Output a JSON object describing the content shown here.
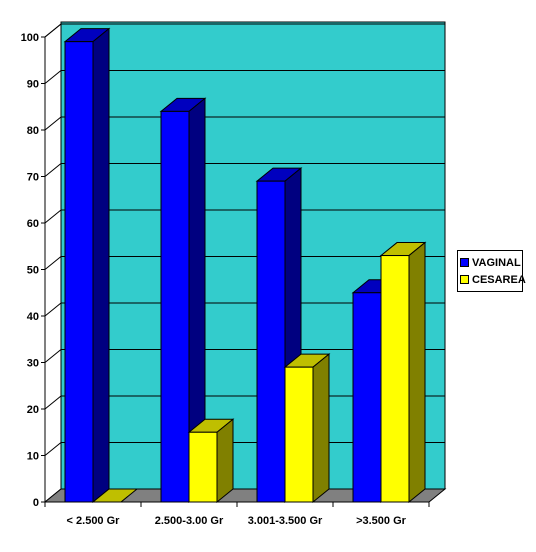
{
  "chart_data": {
    "type": "bar",
    "categories": [
      "< 2.500 Gr",
      "2.500-3.00 Gr",
      "3.001-3.500 Gr",
      ">3.500 Gr"
    ],
    "series": [
      {
        "name": "VAGINAL",
        "values": [
          99,
          84,
          69,
          45
        ],
        "color": "#0000ff"
      },
      {
        "name": "CESAREA",
        "values": [
          0,
          15,
          29,
          53
        ],
        "color": "#ffff00"
      }
    ],
    "ylim": [
      0,
      100
    ],
    "yticks": [
      "0",
      "10",
      "20",
      "30",
      "40",
      "50",
      "60",
      "70",
      "80",
      "90",
      "100"
    ],
    "grid": true,
    "legend": "right",
    "plot_background": "#33cccc"
  }
}
